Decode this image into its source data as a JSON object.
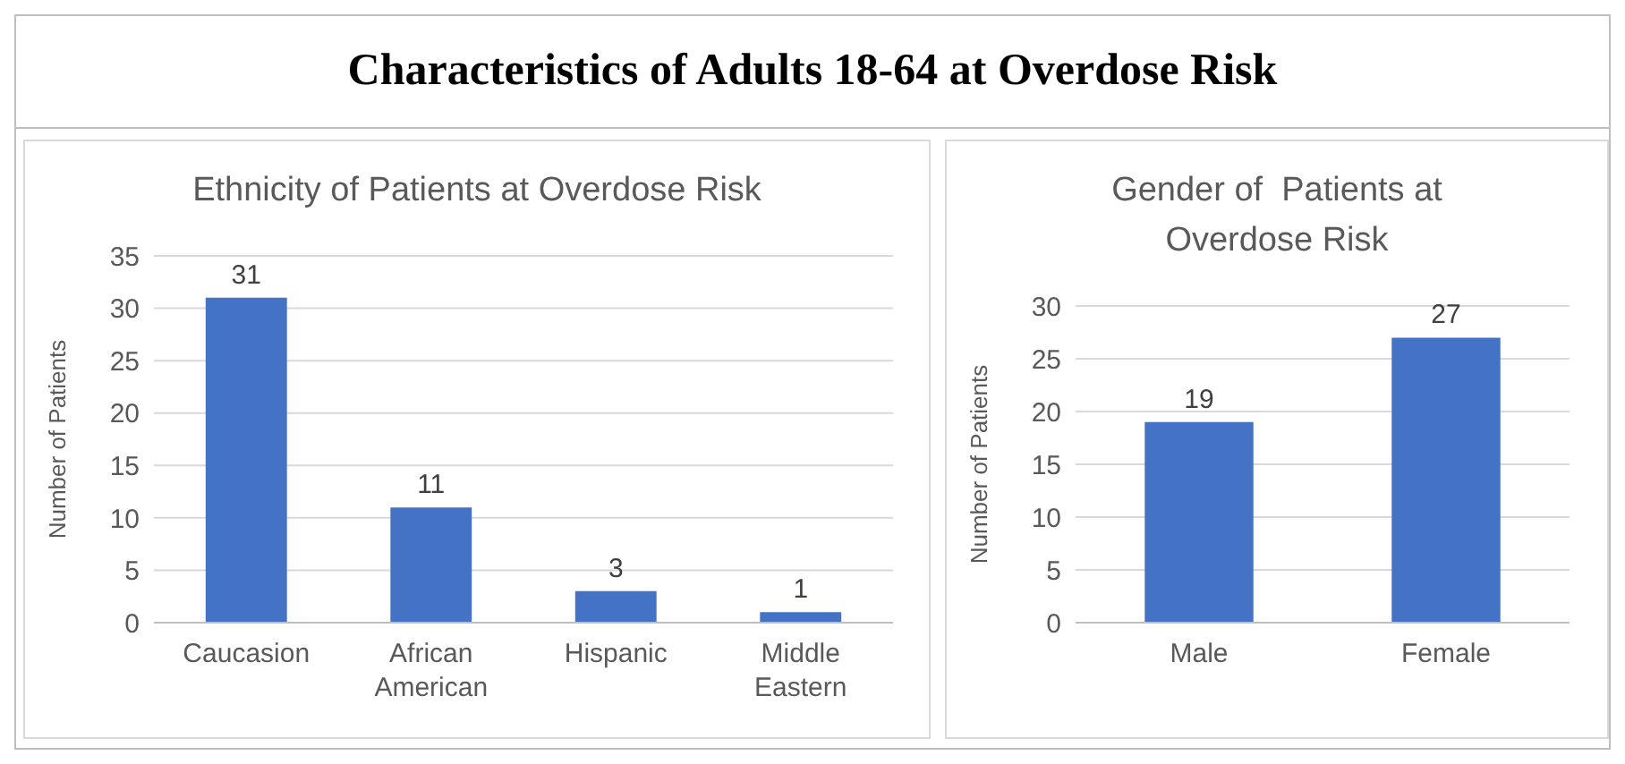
{
  "chart_data": [
    {
      "type": "other",
      "title": "Characteristics of Adults 18-64 at Overdose Risk"
    },
    {
      "type": "bar",
      "title": "Ethnicity of Patients at Overdose Risk",
      "ylabel": "Number of Patients",
      "categories": [
        "Caucasion",
        "African American",
        "Hispanic",
        "Middle Eastern"
      ],
      "values": [
        31,
        11,
        3,
        1
      ],
      "color": "#4472c4",
      "ylim": [
        0,
        35
      ],
      "yticks": [
        0,
        5,
        10,
        15,
        20,
        25,
        30,
        35
      ],
      "grid": "y",
      "data_labels": true
    },
    {
      "type": "bar",
      "title": "Gender of  Patients at Overdose Risk",
      "ylabel": "Number of Patients",
      "categories": [
        "Male",
        "Female"
      ],
      "values": [
        19,
        27
      ],
      "color": "#4472c4",
      "ylim": [
        0,
        30
      ],
      "yticks": [
        0,
        5,
        10,
        15,
        20,
        25,
        30
      ],
      "grid": "y",
      "data_labels": true
    }
  ]
}
